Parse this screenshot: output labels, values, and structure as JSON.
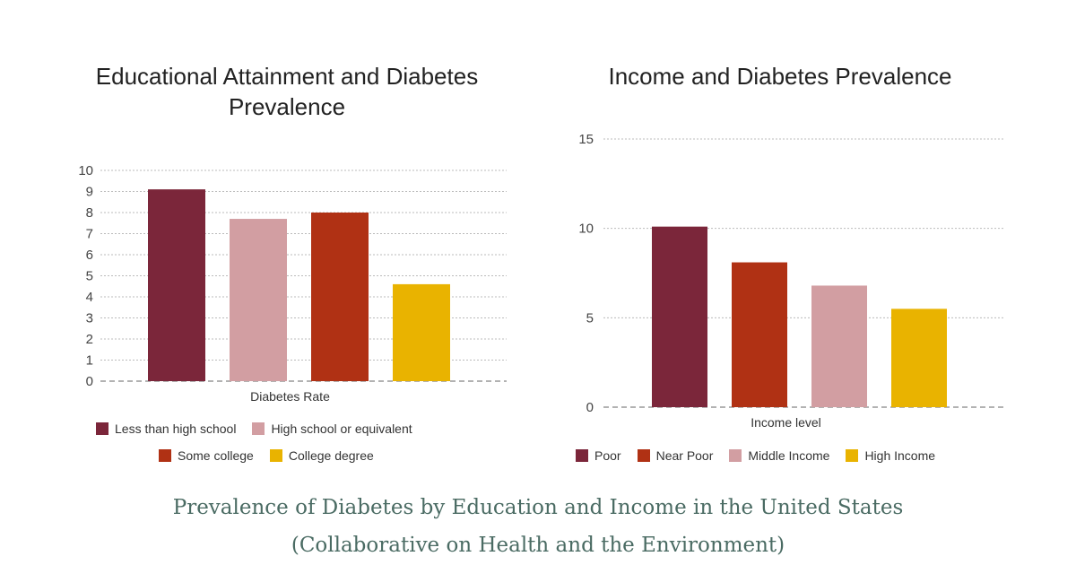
{
  "chart_data": [
    {
      "type": "bar",
      "title": "Educational Attainment and Diabetes Prevalence",
      "xlabel": "Diabetes Rate",
      "ylabel": "",
      "ylim": [
        0,
        10
      ],
      "yticks": [
        "0",
        "1",
        "2",
        "3",
        "4",
        "5",
        "6",
        "7",
        "8",
        "9",
        "10"
      ],
      "grid": true,
      "legend_position": "bottom",
      "categories": [
        "Less than high school",
        "High school or equivalent",
        "Some college",
        "College degree"
      ],
      "values": [
        9.1,
        7.7,
        8.0,
        4.6
      ],
      "colors": [
        "#7b263a",
        "#d29ea2",
        "#b03114",
        "#e9b300"
      ]
    },
    {
      "type": "bar",
      "title": "Income and Diabetes Prevalence",
      "xlabel": "Income level",
      "ylabel": "",
      "ylim": [
        0,
        15
      ],
      "yticks": [
        "0",
        "5",
        "10",
        "15"
      ],
      "grid": true,
      "legend_position": "bottom",
      "categories": [
        "Poor",
        "Near Poor",
        "Middle Income",
        "High Income"
      ],
      "values": [
        10.1,
        8.1,
        6.8,
        5.5
      ],
      "colors": [
        "#7b263a",
        "#b03114",
        "#d29ea2",
        "#e9b300"
      ]
    }
  ],
  "caption": {
    "line1": "Prevalence of Diabetes by Education and Income in the United States",
    "line2": "(Collaborative on Health and the Environment)"
  }
}
